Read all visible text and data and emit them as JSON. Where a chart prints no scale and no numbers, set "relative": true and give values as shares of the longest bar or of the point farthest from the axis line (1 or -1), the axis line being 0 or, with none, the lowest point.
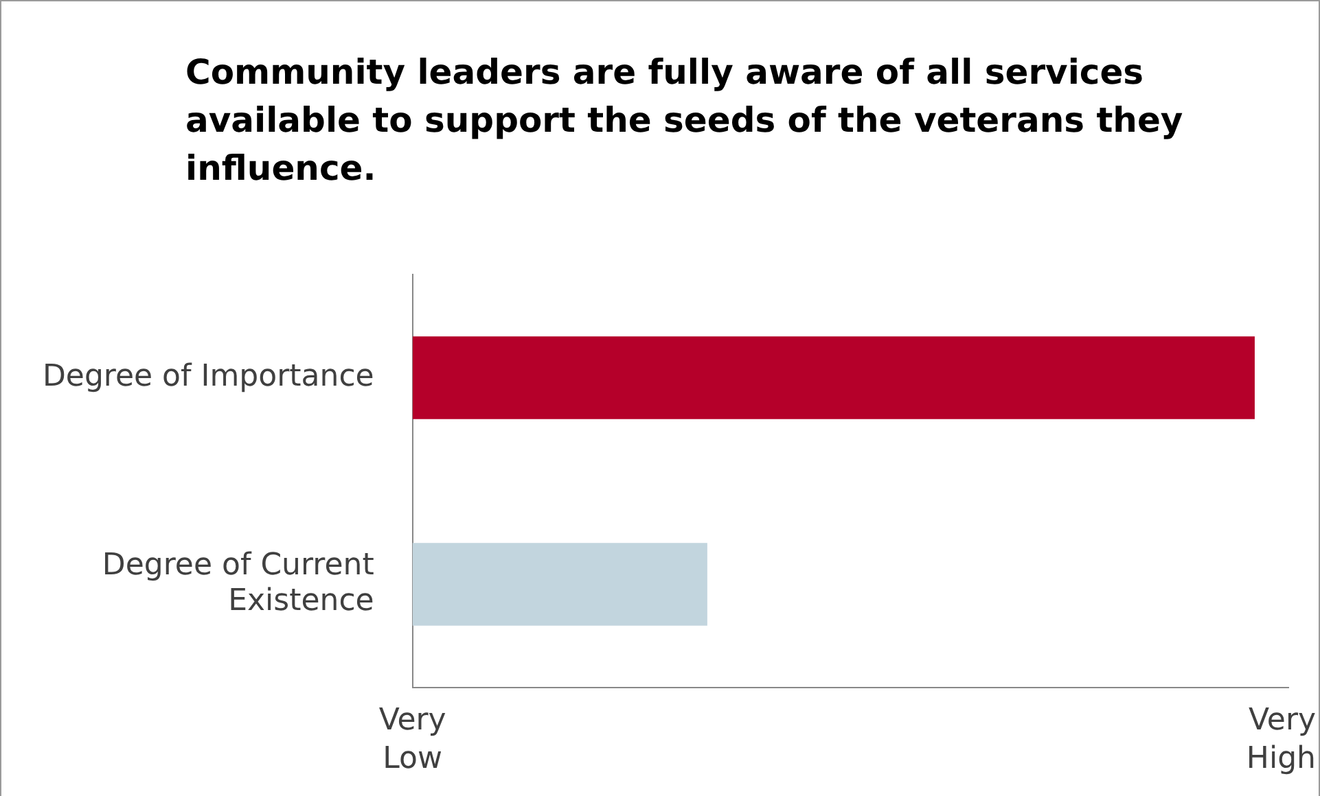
{
  "chart_data": {
    "type": "bar",
    "orientation": "horizontal",
    "relative": true,
    "title": "Community leaders are fully aware of all services available to support the seeds of the veterans they influence.",
    "categories": [
      "Degree of Importance",
      "Degree of Current Existence"
    ],
    "values": [
      1,
      0.35
    ],
    "colors": [
      "#b5002a",
      "#c2d5de"
    ],
    "annotations": [
      "Very Low",
      "Very High"
    ],
    "legend": false
  }
}
